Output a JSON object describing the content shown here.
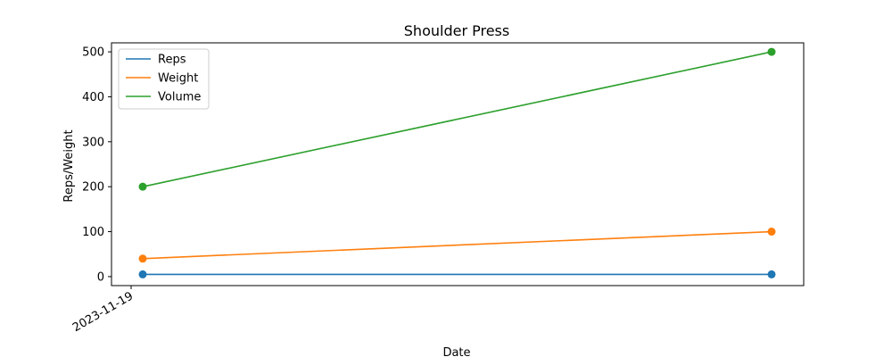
{
  "chart_data": {
    "type": "line",
    "title": "Shoulder Press",
    "xlabel": "Date",
    "ylabel": "Reps/Weight",
    "x_tick_labels": [
      "2023-11-19"
    ],
    "y_ticks": [
      0,
      100,
      200,
      300,
      400,
      500
    ],
    "ylim": [
      -20,
      520
    ],
    "grid": false,
    "legend_position": "top-left",
    "series": [
      {
        "name": "Reps",
        "color": "#1f77b4",
        "values": [
          5,
          5
        ]
      },
      {
        "name": "Weight",
        "color": "#ff7f0e",
        "values": [
          40,
          100
        ]
      },
      {
        "name": "Volume",
        "color": "#2ca02c",
        "values": [
          200,
          500
        ]
      }
    ]
  }
}
